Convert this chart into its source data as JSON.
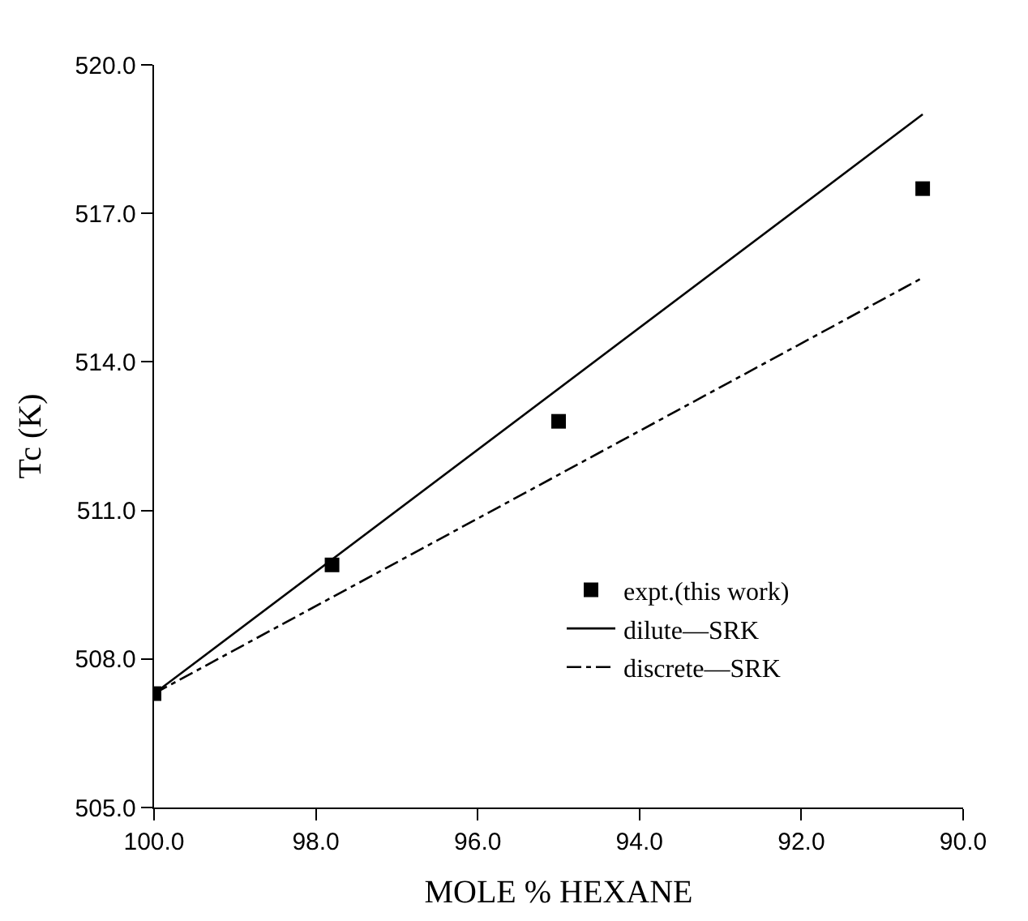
{
  "chart_data": {
    "type": "scatter",
    "xlabel": "MOLE % HEXANE",
    "ylabel": "Tc (K)",
    "xlim": [
      100.0,
      90.0
    ],
    "xticks": [
      {
        "value": 100,
        "label": "100.0"
      },
      {
        "value": 98,
        "label": "98.0"
      },
      {
        "value": 96,
        "label": "96.0"
      },
      {
        "value": 94,
        "label": "94.0"
      },
      {
        "value": 92,
        "label": "92.0"
      },
      {
        "value": 90,
        "label": "90.0"
      }
    ],
    "ylim": [
      505.0,
      520.0
    ],
    "yticks": [
      {
        "value": 505,
        "label": "505.0"
      },
      {
        "value": 508,
        "label": "508.0"
      },
      {
        "value": 511,
        "label": "511.0"
      },
      {
        "value": 514,
        "label": "514.0"
      },
      {
        "value": 517,
        "label": "517.0"
      },
      {
        "value": 520,
        "label": "520.0"
      }
    ],
    "legend": "right",
    "series": [
      {
        "name": "expt.(this work)",
        "marker": "square",
        "color": "#000000",
        "x": [
          100.0,
          97.8,
          95.0,
          90.5
        ],
        "values": [
          507.3,
          509.9,
          512.8,
          517.5
        ]
      },
      {
        "name": "dilute—SRK",
        "type": "line",
        "line_style": "solid",
        "color": "#000000",
        "x": [
          100.0,
          90.5
        ],
        "values": [
          507.3,
          519.0
        ]
      },
      {
        "name": "discrete—SRK",
        "type": "line",
        "line_style": "dashdot",
        "color": "#000000",
        "x": [
          100.0,
          90.5
        ],
        "values": [
          507.3,
          515.7
        ]
      }
    ]
  }
}
